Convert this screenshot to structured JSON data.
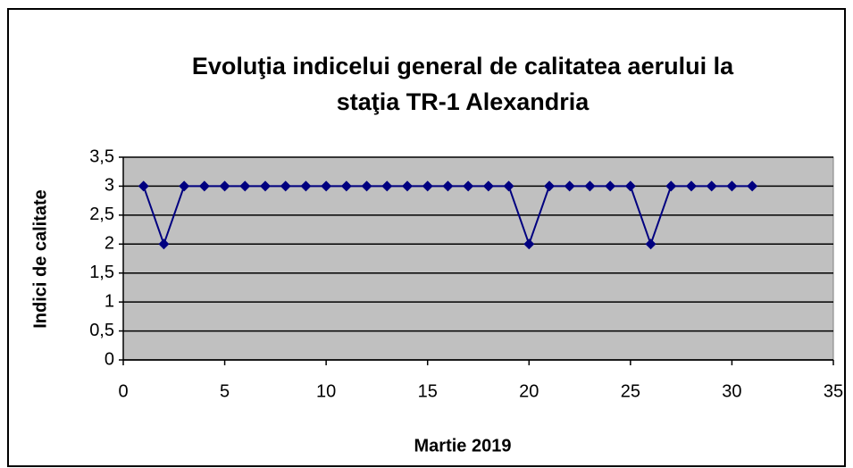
{
  "chart_data": {
    "type": "line",
    "title": [
      "Evoluţia indicelui general de calitatea aerului la",
      "staţia TR-1 Alexandria"
    ],
    "xlabel": "Martie 2019",
    "ylabel": "Indici de calitate",
    "x": [
      1,
      2,
      3,
      4,
      5,
      6,
      7,
      8,
      9,
      10,
      11,
      12,
      13,
      14,
      15,
      16,
      17,
      18,
      19,
      20,
      21,
      22,
      23,
      24,
      25,
      26,
      27,
      28,
      29,
      30,
      31
    ],
    "values": [
      3,
      2,
      3,
      3,
      3,
      3,
      3,
      3,
      3,
      3,
      3,
      3,
      3,
      3,
      3,
      3,
      3,
      3,
      3,
      2,
      3,
      3,
      3,
      3,
      3,
      2,
      3,
      3,
      3,
      3,
      3
    ],
    "color": "#000080",
    "xlim": [
      0,
      35
    ],
    "xticks": [
      0,
      5,
      10,
      15,
      20,
      25,
      30,
      35
    ],
    "ylim": [
      0,
      3.5
    ],
    "yticks": [
      0,
      {
        "value": 0.5,
        "label": "0,5"
      },
      1,
      {
        "value": 1.5,
        "label": "1,5"
      },
      2,
      {
        "value": 2.5,
        "label": "2,5"
      },
      3,
      {
        "value": 3.5,
        "label": "3,5"
      }
    ],
    "grid": true
  }
}
